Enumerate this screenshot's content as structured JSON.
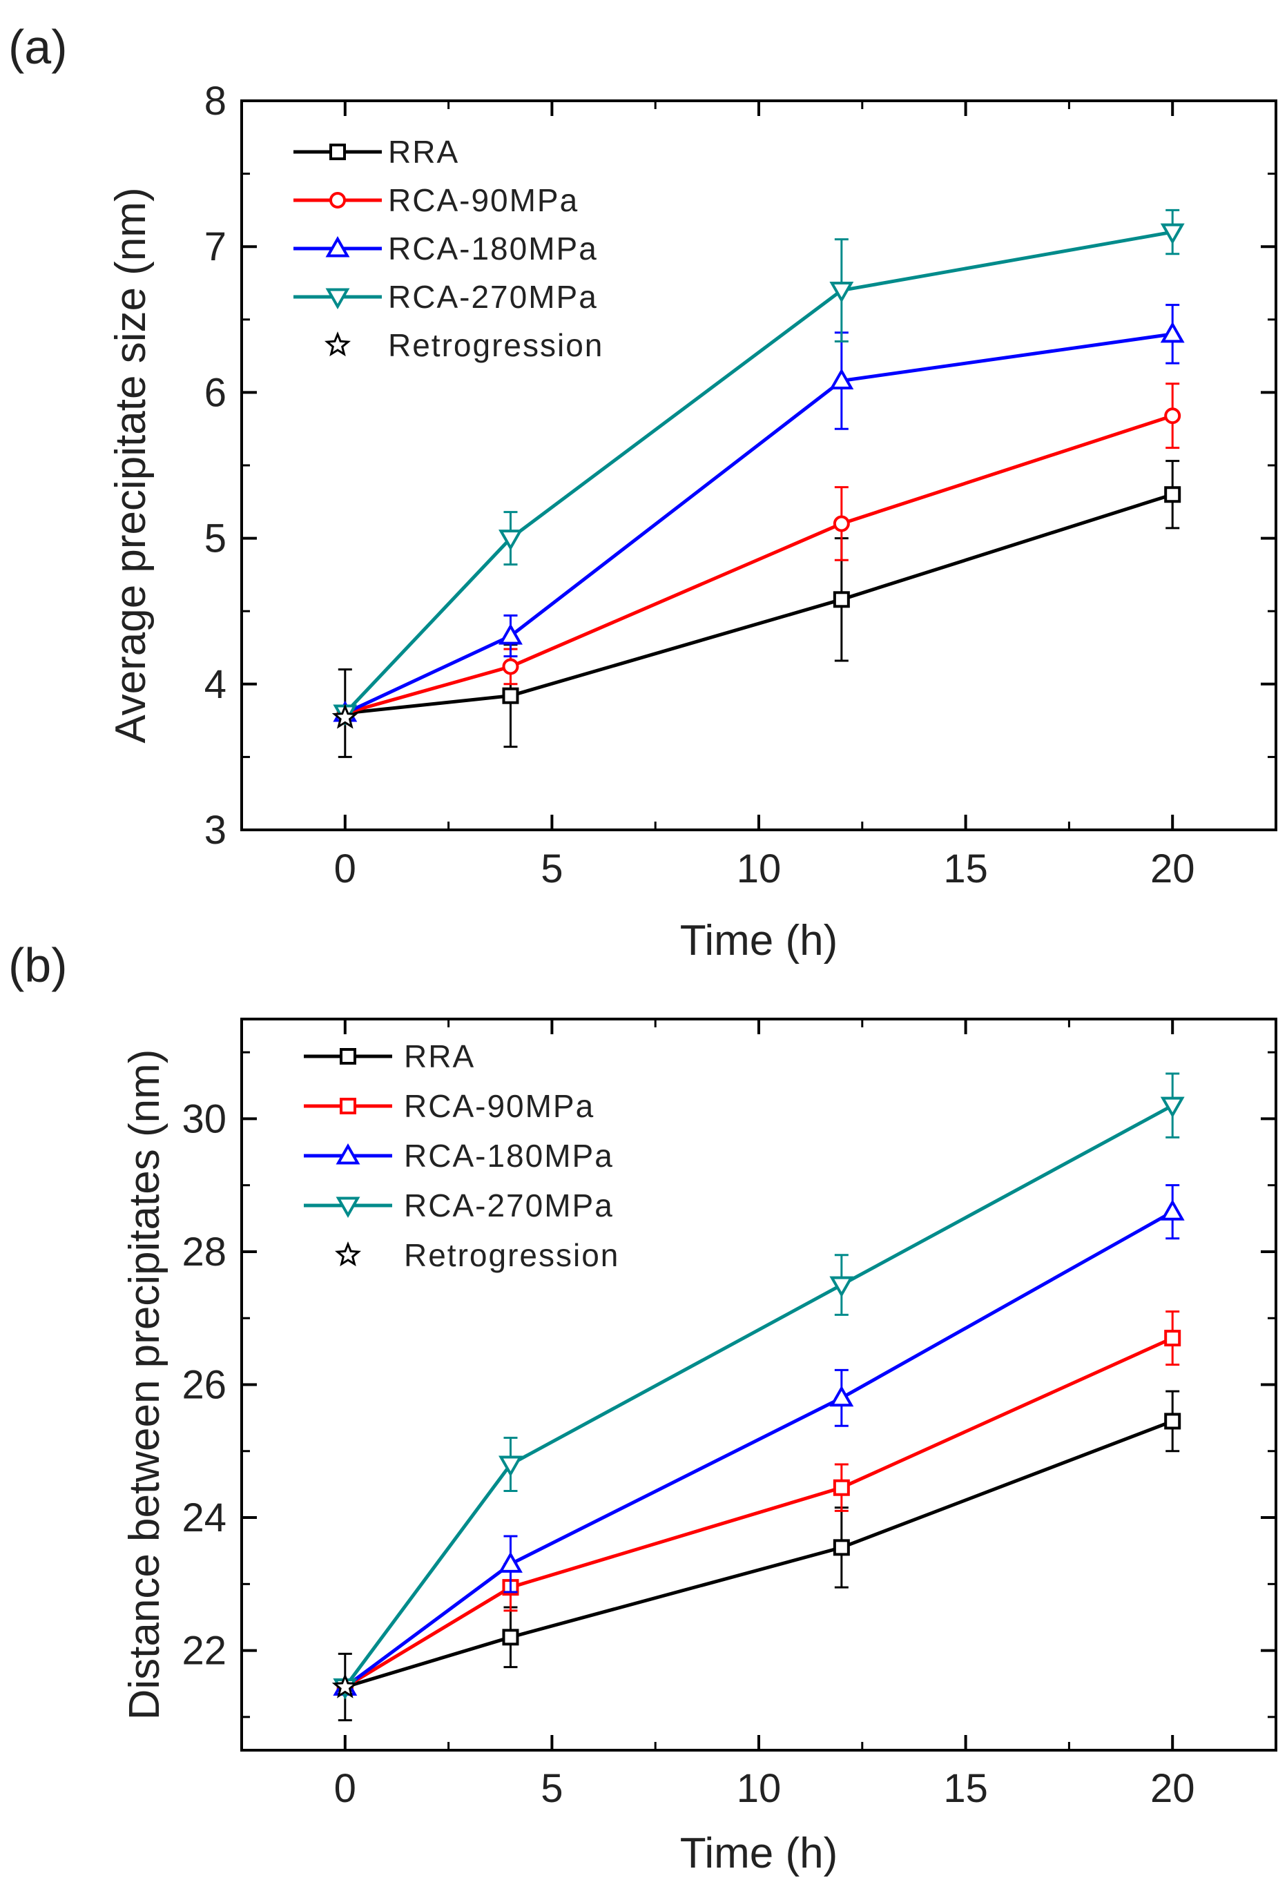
{
  "chart_data": [
    {
      "panel_label": "(a)",
      "type": "line",
      "title": "",
      "xlabel": "Time (h)",
      "ylabel": "Average precipitate size (nm)",
      "xlim": [
        -2.5,
        22.5
      ],
      "ylim": [
        3,
        8
      ],
      "xticks": [
        0,
        5,
        10,
        15,
        20
      ],
      "yticks": [
        3,
        4,
        5,
        6,
        7,
        8
      ],
      "grid": false,
      "legend_position": "top-left",
      "x": [
        0,
        4,
        12,
        20
      ],
      "series": [
        {
          "name": "RRA",
          "color": "#000000",
          "marker": "square",
          "values": [
            3.8,
            3.92,
            4.58,
            5.3
          ],
          "errors": [
            0.3,
            0.35,
            0.42,
            0.23
          ]
        },
        {
          "name": "RCA-90MPa",
          "color": "#ff0000",
          "marker": "circle",
          "values": [
            3.8,
            4.12,
            5.1,
            5.84
          ],
          "errors": [
            0.0,
            0.12,
            0.25,
            0.22
          ]
        },
        {
          "name": "RCA-180MPa",
          "color": "#0000ff",
          "marker": "triangle-up",
          "values": [
            3.8,
            4.33,
            6.08,
            6.4
          ],
          "errors": [
            0.0,
            0.14,
            0.33,
            0.2
          ]
        },
        {
          "name": "RCA-270MPa",
          "color": "#008b8b",
          "marker": "triangle-down",
          "values": [
            3.8,
            5.0,
            6.7,
            7.1
          ],
          "errors": [
            0.0,
            0.18,
            0.35,
            0.15
          ]
        },
        {
          "name": "Retrogression",
          "color": "#000000",
          "marker": "star",
          "values": [
            3.77
          ],
          "x": [
            0
          ],
          "line": false
        }
      ]
    },
    {
      "panel_label": "(b)",
      "type": "line",
      "title": "",
      "xlabel": "Time (h)",
      "ylabel": "Distance between precipitates (nm)",
      "xlim": [
        -2.5,
        22.5
      ],
      "ylim": [
        20.5,
        31.5
      ],
      "xticks": [
        0,
        5,
        10,
        15,
        20
      ],
      "yticks": [
        22,
        24,
        26,
        28,
        30
      ],
      "grid": false,
      "legend_position": "top-left",
      "x": [
        0,
        4,
        12,
        20
      ],
      "series": [
        {
          "name": "RRA",
          "color": "#000000",
          "marker": "square",
          "values": [
            21.45,
            22.2,
            23.55,
            25.45
          ],
          "errors": [
            0.5,
            0.45,
            0.6,
            0.45
          ]
        },
        {
          "name": "RCA-90MPa",
          "color": "#ff0000",
          "marker": "square",
          "values": [
            21.45,
            22.95,
            24.45,
            26.7
          ],
          "errors": [
            0.0,
            0.35,
            0.35,
            0.4
          ]
        },
        {
          "name": "RCA-180MPa",
          "color": "#0000ff",
          "marker": "triangle-up",
          "values": [
            21.45,
            23.3,
            25.8,
            28.6
          ],
          "errors": [
            0.0,
            0.42,
            0.42,
            0.4
          ]
        },
        {
          "name": "RCA-270MPa",
          "color": "#008b8b",
          "marker": "triangle-down",
          "values": [
            21.45,
            24.8,
            27.5,
            30.2
          ],
          "errors": [
            0.0,
            0.4,
            0.45,
            0.48
          ]
        },
        {
          "name": "Retrogression",
          "color": "#000000",
          "marker": "star",
          "values": [
            21.45
          ],
          "x": [
            0
          ],
          "line": false
        }
      ]
    }
  ]
}
